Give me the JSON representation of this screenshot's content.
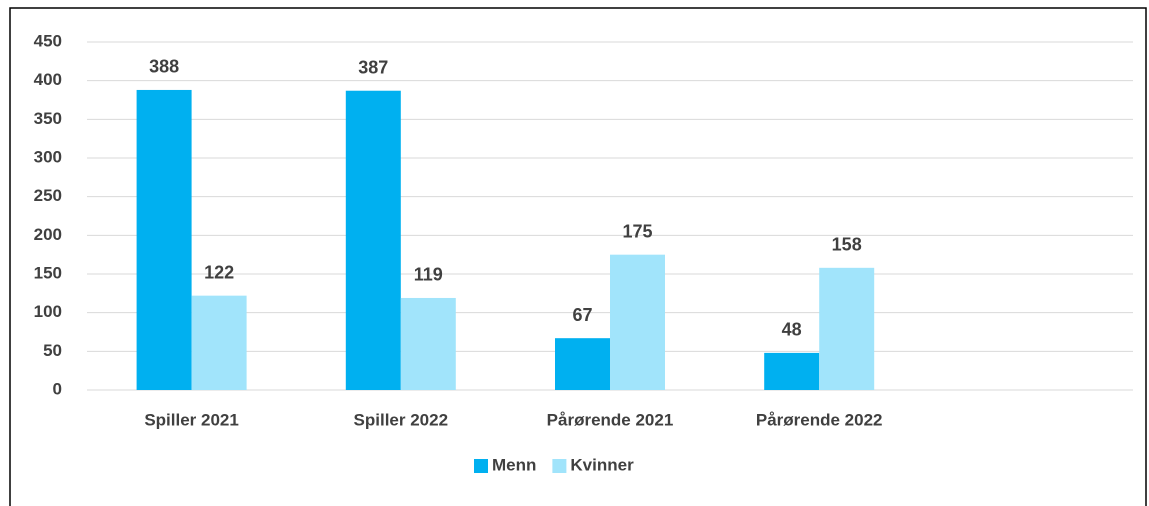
{
  "chart_data": {
    "type": "bar",
    "categories": [
      "Spiller 2021",
      "Spiller 2022",
      "Pårørende 2021",
      "Pårørende 2022",
      null
    ],
    "series": [
      {
        "name": "Menn",
        "color": "#00b0f0",
        "values": [
          388,
          387,
          67,
          48,
          null
        ]
      },
      {
        "name": "Kvinner",
        "color": "#a1e4fb",
        "values": [
          122,
          119,
          175,
          158,
          null
        ]
      }
    ],
    "ylim": [
      0,
      450
    ],
    "yticks": [
      0,
      50,
      100,
      150,
      200,
      250,
      300,
      350,
      400,
      450
    ],
    "grid": true,
    "legend": "bottom"
  }
}
